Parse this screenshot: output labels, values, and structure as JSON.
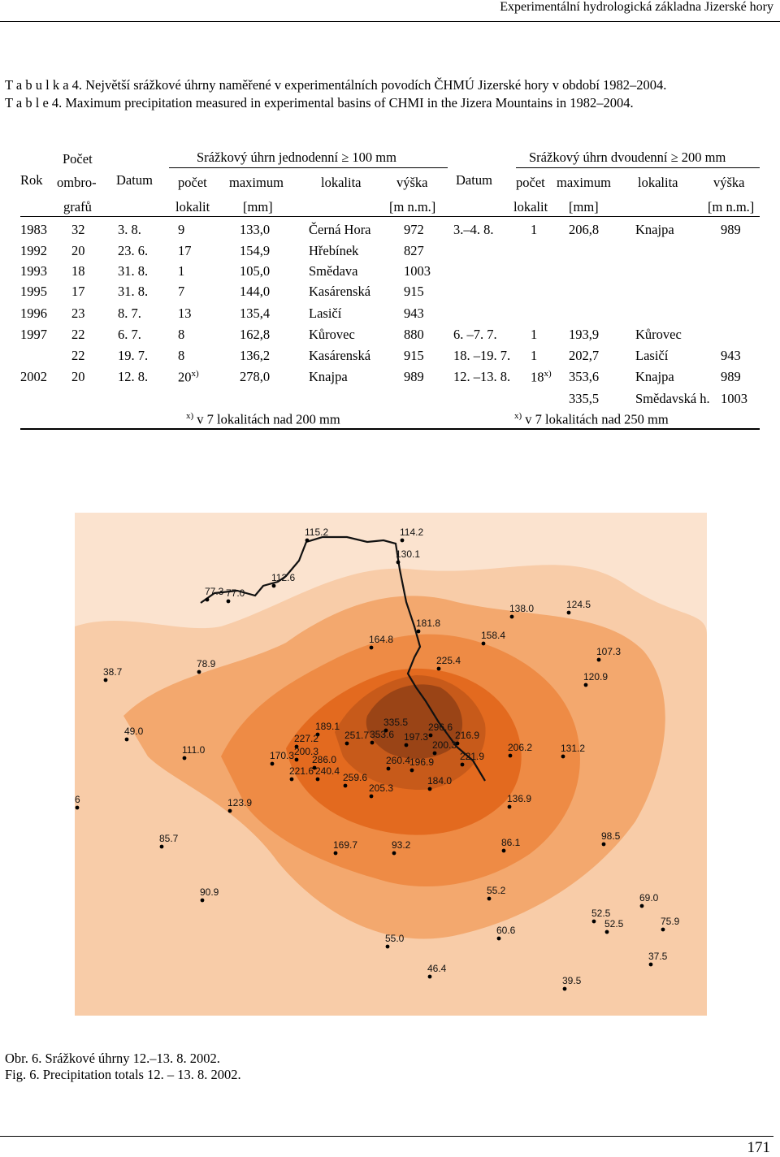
{
  "header": {
    "running_title": "Experimentální hydrologická základna Jizerské hory"
  },
  "table_caption": {
    "cz": "T a b u l k a  4.  Největší srážkové úhrny naměřené v experimentálních povodích ČHMÚ Jizerské hory v období 1982–2004.",
    "en": "T a b l e  4.  Maximum precipitation measured in experimental basins of CHMI in the Jizera Mountains in 1982–2004."
  },
  "table": {
    "headers": {
      "rok": "Rok",
      "pocet_ombrografu": [
        "Počet",
        "ombro-",
        "grafů"
      ],
      "datum": "Datum",
      "daily_group": "Srážkový úhrn jednodenní ≥ 100 mm",
      "twoday_group": "Srážkový úhrn dvoudenní ≥ 200 mm",
      "pocet": "počet",
      "lokalit": "lokalit",
      "maximum": "maximum",
      "mm": "[mm]",
      "lokalita": "lokalita",
      "vyska": "výška",
      "mnm": "[m n.m.]"
    },
    "rows": [
      [
        "1983",
        "32",
        "3. 8.",
        "9",
        "133,0",
        "Černá Hora",
        "972",
        "3.–4. 8.",
        "1",
        "206,8",
        "Knajpa",
        "989"
      ],
      [
        "1992",
        "20",
        "23. 6.",
        "17",
        "154,9",
        "Hřebínek",
        "827",
        "",
        "",
        "",
        "",
        ""
      ],
      [
        "1993",
        "18",
        "31. 8.",
        "1",
        "105,0",
        "Smědava",
        "1003",
        "",
        "",
        "",
        "",
        ""
      ],
      [
        "1995",
        "17",
        "31. 8.",
        "7",
        "144,0",
        "Kasárenská",
        "915",
        "",
        "",
        "",
        "",
        ""
      ],
      [
        "1996",
        "23",
        "8. 7.",
        "13",
        "135,4",
        "Lasičí",
        "943",
        "",
        "",
        "",
        "",
        ""
      ],
      [
        "1997",
        "22",
        "6. 7.",
        "8",
        "162,8",
        "Kůrovec",
        "880",
        "6. –7. 7.",
        "1",
        "193,9",
        "Kůrovec",
        ""
      ],
      [
        "",
        "22",
        "19. 7.",
        "8",
        "136,2",
        "Kasárenská",
        "915",
        "18. –19. 7.",
        "1",
        "202,7",
        "Lasičí",
        "943"
      ],
      [
        "2002",
        "20",
        "12. 8.",
        "20",
        "278,0",
        "Knajpa",
        "989",
        "12. –13. 8.",
        "18",
        "353,6",
        "Knajpa",
        "989"
      ],
      [
        "",
        "",
        "",
        "",
        "",
        "",
        "",
        "",
        "",
        "335,5",
        "Smědavská h.",
        "1003"
      ]
    ],
    "sup_mark": "x)",
    "footnote_daily": "v 7 lokalitách nad 200 mm",
    "footnote_twoday": "v 7 lokalitách nad 250 mm"
  },
  "map": {
    "colors": {
      "light": "#fbe3cf",
      "light2": "#f8cca8",
      "mid": "#f3a86e",
      "mid2": "#ee8b45",
      "dark": "#e36a1f",
      "darker": "#c75a1a",
      "darkest": "#9a4416"
    },
    "stations": [
      {
        "label": "115.2"
      },
      {
        "label": "114.2"
      },
      {
        "label": "130.1"
      },
      {
        "label": "112.6"
      },
      {
        "label": "77.3"
      },
      {
        "label": "77.0"
      },
      {
        "label": "138.0"
      },
      {
        "label": "124.5"
      },
      {
        "label": "181.8"
      },
      {
        "label": "164.8"
      },
      {
        "label": "158.4"
      },
      {
        "label": "107.3"
      },
      {
        "label": "38.7"
      },
      {
        "label": "78.9"
      },
      {
        "label": "225.4"
      },
      {
        "label": "120.9"
      },
      {
        "label": "335.5"
      },
      {
        "label": "189.1"
      },
      {
        "label": "296.6"
      },
      {
        "label": "227.2"
      },
      {
        "label": "251.7"
      },
      {
        "label": "353.6"
      },
      {
        "label": "197.3"
      },
      {
        "label": "216.9"
      },
      {
        "label": "49.0"
      },
      {
        "label": "200.3"
      },
      {
        "label": "111.0"
      },
      {
        "label": "200.3"
      },
      {
        "label": "206.2"
      },
      {
        "label": "131.2"
      },
      {
        "label": "170.3"
      },
      {
        "label": "286.0"
      },
      {
        "label": "260.4"
      },
      {
        "label": "196.9"
      },
      {
        "label": "221.9"
      },
      {
        "label": "221.6"
      },
      {
        "label": "240.4"
      },
      {
        "label": "259.6"
      },
      {
        "label": "184.0"
      },
      {
        "label": "205.3"
      },
      {
        "label": "6"
      },
      {
        "label": "123.9"
      },
      {
        "label": "136.9"
      },
      {
        "label": "85.7"
      },
      {
        "label": "169.7"
      },
      {
        "label": "93.2"
      },
      {
        "label": "86.1"
      },
      {
        "label": "98.5"
      },
      {
        "label": "90.9"
      },
      {
        "label": "55.2"
      },
      {
        "label": "69.0"
      },
      {
        "label": "52.5"
      },
      {
        "label": "52.5"
      },
      {
        "label": "75.9"
      },
      {
        "label": "60.6"
      },
      {
        "label": "55.0"
      },
      {
        "label": "37.5"
      },
      {
        "label": "46.4"
      },
      {
        "label": "39.5"
      }
    ]
  },
  "figure_caption": {
    "cz": "Obr. 6. Srážkové úhrny 12.–13. 8. 2002.",
    "en": "Fig. 6. Precipitation totals 12. – 13. 8. 2002."
  },
  "page_number": "171"
}
